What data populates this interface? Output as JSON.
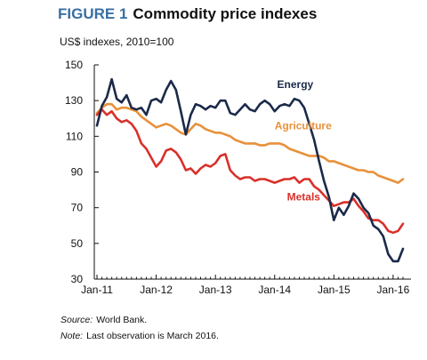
{
  "figure": {
    "number": "FIGURE 1",
    "title": "Commodity price indexes",
    "unit": "US$ indexes, 2010=100",
    "source_label": "Source:",
    "source_text": "World Bank.",
    "note_label": "Note:",
    "note_text": "Last observation is March 2016."
  },
  "chart_data": {
    "type": "line",
    "ylim": [
      30,
      150
    ],
    "y_ticks": [
      30,
      50,
      70,
      90,
      110,
      130,
      150
    ],
    "x_range": [
      0,
      62
    ],
    "x_tick_labels": [
      "Jan-11",
      "Jan-12",
      "Jan-13",
      "Jan-14",
      "Jan-15",
      "Jan-16"
    ],
    "x_tick_positions": [
      0,
      12,
      24,
      36,
      48,
      60
    ],
    "x_unit": "months since Jan-11",
    "grid": false,
    "legend": "direct labels on lines",
    "series": [
      {
        "name": "Energy",
        "color": "#1b2a4a",
        "values": [
          116,
          127,
          132,
          142,
          131,
          129,
          133,
          126,
          125,
          126,
          122,
          130,
          131,
          129,
          136,
          141,
          136,
          124,
          111,
          122,
          128,
          127,
          125,
          127,
          126,
          130,
          130,
          123,
          122,
          125,
          128,
          125,
          124,
          128,
          130,
          128,
          124,
          127,
          128,
          127,
          131,
          130,
          126,
          117,
          108,
          96,
          85,
          76,
          63,
          70,
          66,
          71,
          78,
          75,
          70,
          67,
          60,
          58,
          54,
          44,
          40,
          40,
          47
        ]
      },
      {
        "name": "Agriculture",
        "color": "#e8913a",
        "values": [
          123,
          126,
          128,
          128,
          125,
          126,
          126,
          125,
          124,
          121,
          119,
          117,
          115,
          116,
          117,
          116,
          114,
          112,
          111,
          114,
          117,
          116,
          114,
          113,
          112,
          112,
          111,
          110,
          108,
          107,
          106,
          106,
          106,
          105,
          105,
          106,
          106,
          106,
          105,
          103,
          102,
          101,
          100,
          99,
          99,
          99,
          98,
          96,
          96,
          95,
          94,
          93,
          92,
          91,
          91,
          90,
          90,
          88,
          87,
          86,
          85,
          84,
          86
        ]
      },
      {
        "name": "Metals",
        "color": "#d9302a",
        "values": [
          122,
          125,
          122,
          124,
          120,
          118,
          119,
          117,
          113,
          106,
          103,
          98,
          93,
          96,
          102,
          103,
          101,
          97,
          91,
          92,
          89,
          92,
          94,
          93,
          95,
          99,
          100,
          91,
          88,
          86,
          87,
          87,
          85,
          86,
          86,
          85,
          84,
          85,
          86,
          86,
          87,
          84,
          86,
          86,
          82,
          80,
          77,
          74,
          71,
          72,
          73,
          73,
          75,
          71,
          68,
          64,
          63,
          63,
          61,
          57,
          56,
          57,
          61
        ]
      }
    ]
  }
}
